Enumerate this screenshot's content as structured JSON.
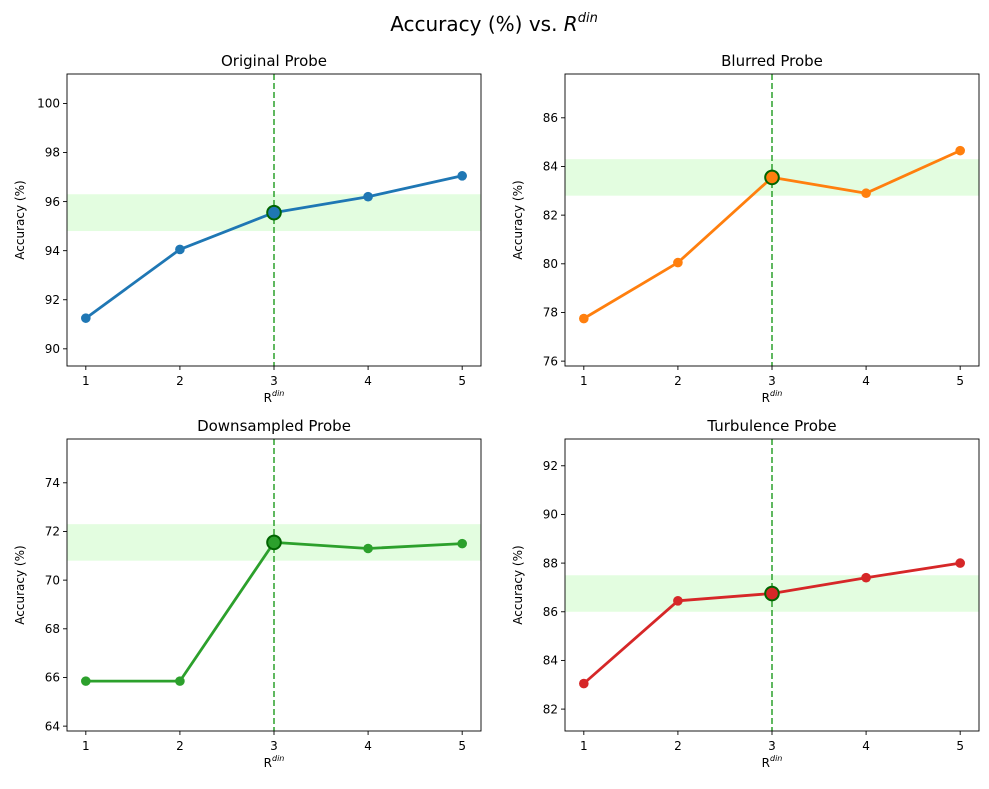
{
  "figure": {
    "title_main": "Accuracy (%) vs. ",
    "title_symbol": "R",
    "title_superscript": "din"
  },
  "chart_data": [
    {
      "type": "line",
      "title": "Original Probe",
      "xlabel": "R",
      "xlabel_superscript": "din",
      "ylabel": "Accuracy (%)",
      "x": [
        1,
        2,
        3,
        4,
        5
      ],
      "xlim": [
        0.8,
        5.2
      ],
      "ylim": [
        89.3,
        101.2
      ],
      "yticks": [
        90,
        92,
        94,
        96,
        98,
        100
      ],
      "values": [
        91.25,
        94.05,
        95.55,
        96.2,
        97.05
      ],
      "color": "#1f77b4",
      "highlight_x": 3,
      "band": [
        94.8,
        96.3
      ],
      "band_color": "#e3fde0",
      "marker_color": "#2ca02c"
    },
    {
      "type": "line",
      "title": "Blurred Probe",
      "xlabel": "R",
      "xlabel_superscript": "din",
      "ylabel": "Accuracy (%)",
      "x": [
        1,
        2,
        3,
        4,
        5
      ],
      "xlim": [
        0.8,
        5.2
      ],
      "ylim": [
        75.8,
        87.8
      ],
      "yticks": [
        76,
        78,
        80,
        82,
        84,
        86
      ],
      "values": [
        77.75,
        80.05,
        83.55,
        82.9,
        84.65
      ],
      "color": "#ff7f0e",
      "highlight_x": 3,
      "band": [
        82.8,
        84.3
      ],
      "band_color": "#e3fde0",
      "marker_color": "#2ca02c"
    },
    {
      "type": "line",
      "title": "Downsampled Probe",
      "xlabel": "R",
      "xlabel_superscript": "din",
      "ylabel": "Accuracy (%)",
      "x": [
        1,
        2,
        3,
        4,
        5
      ],
      "xlim": [
        0.8,
        5.2
      ],
      "ylim": [
        63.8,
        75.8
      ],
      "yticks": [
        64,
        66,
        68,
        70,
        72,
        74
      ],
      "values": [
        65.85,
        65.85,
        71.55,
        71.3,
        71.5
      ],
      "color": "#2ca02c",
      "highlight_x": 3,
      "band": [
        70.8,
        72.3
      ],
      "band_color": "#e3fde0",
      "marker_color": "#2ca02c"
    },
    {
      "type": "line",
      "title": "Turbulence Probe",
      "xlabel": "R",
      "xlabel_superscript": "din",
      "ylabel": "Accuracy (%)",
      "x": [
        1,
        2,
        3,
        4,
        5
      ],
      "xlim": [
        0.8,
        5.2
      ],
      "ylim": [
        81.1,
        93.1
      ],
      "yticks": [
        82,
        84,
        86,
        88,
        90,
        92
      ],
      "values": [
        83.05,
        86.45,
        86.75,
        87.4,
        88.0
      ],
      "color": "#d62728",
      "highlight_x": 3,
      "band": [
        86.0,
        87.5
      ],
      "band_color": "#e3fde0",
      "marker_color": "#2ca02c"
    }
  ]
}
